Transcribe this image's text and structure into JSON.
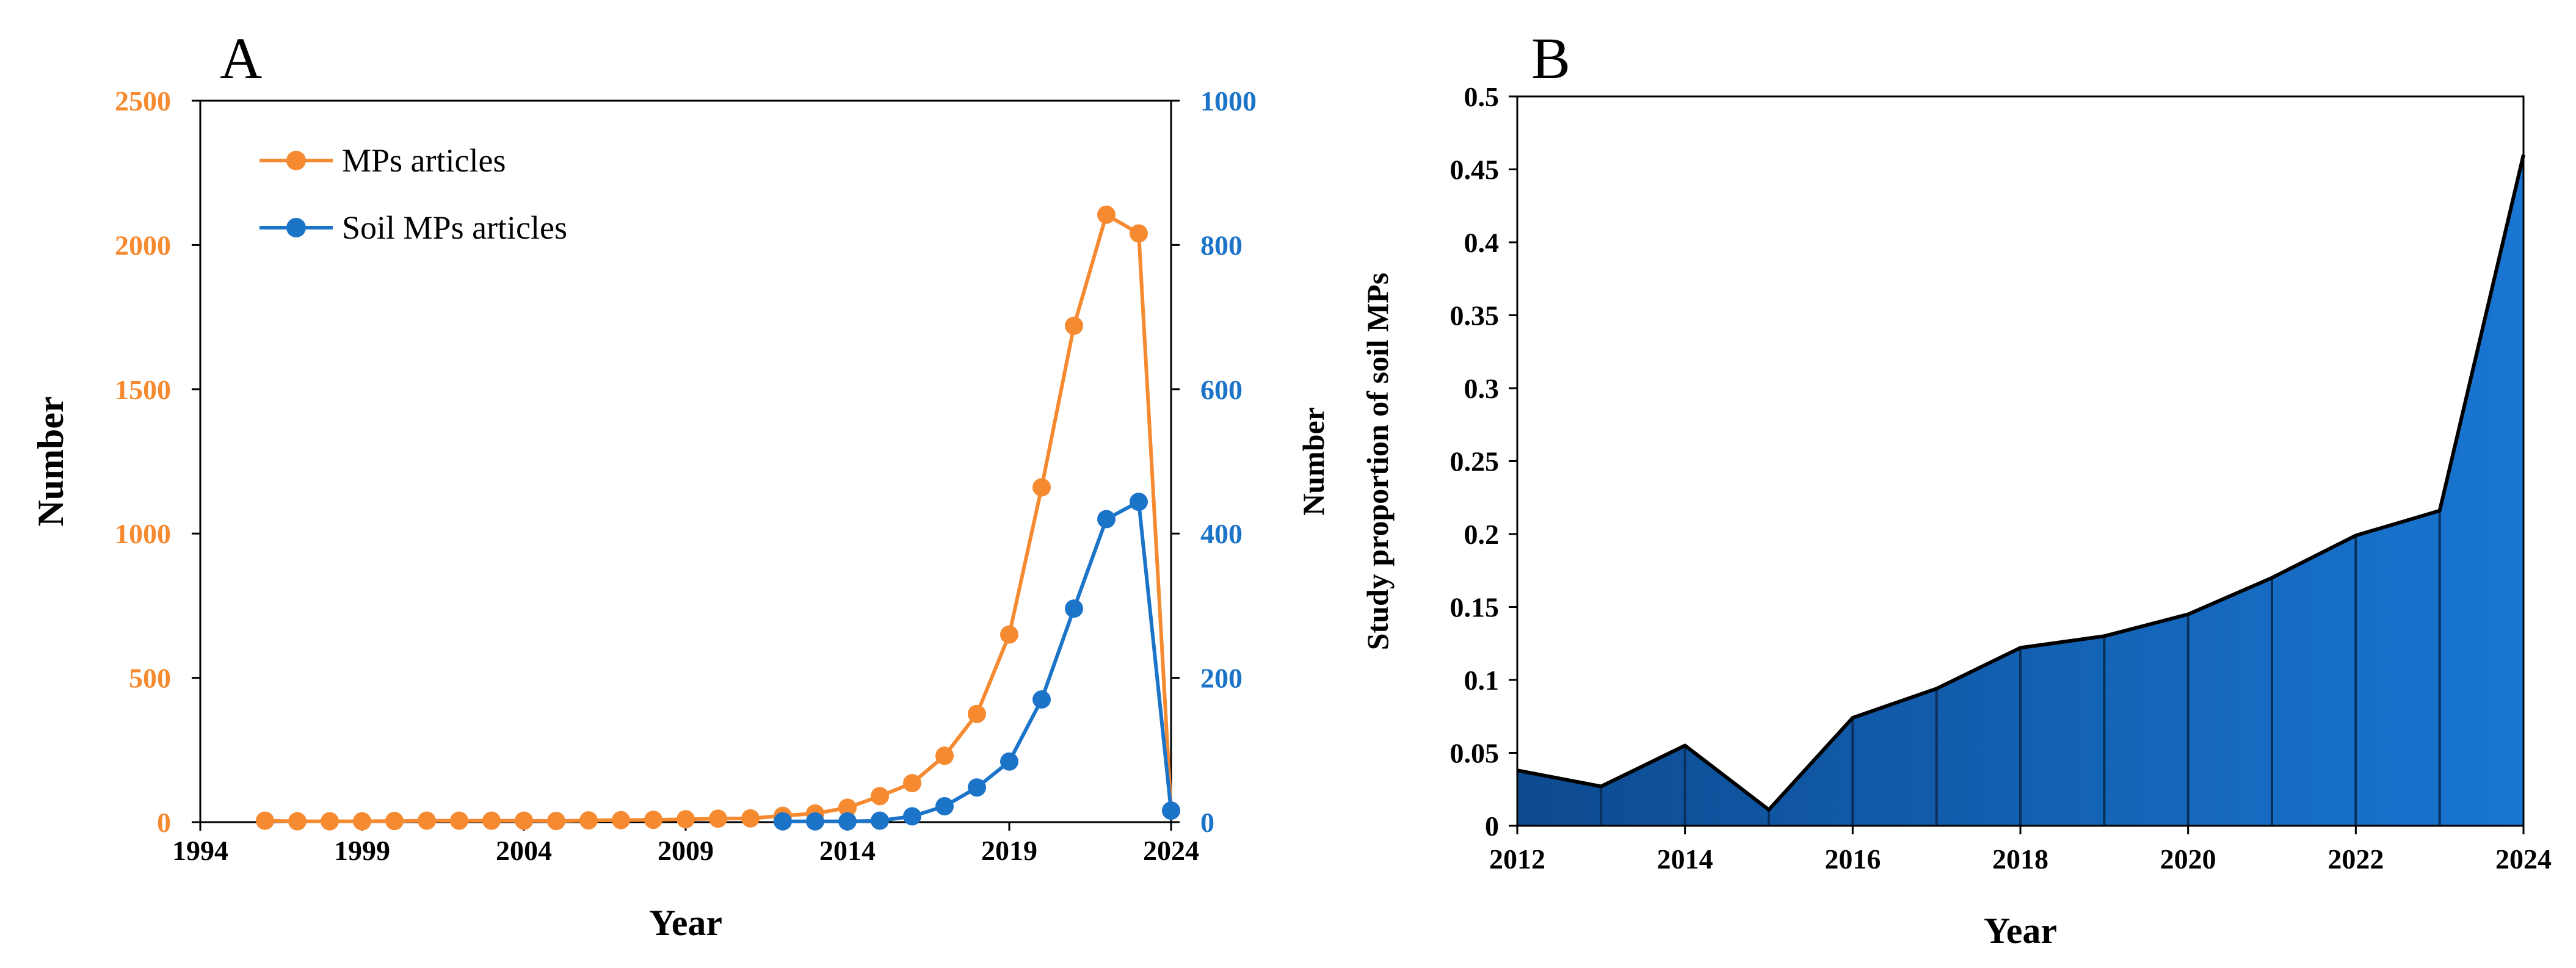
{
  "colors": {
    "orange": "#F58A30",
    "blue": "#1C74C9",
    "areaDark": "#0D4A90",
    "areaLight": "#1976D2",
    "black": "#000000"
  },
  "chart_data": [
    {
      "panel": "A",
      "type": "line",
      "xlabel": "Year",
      "ylabel_left": "Number",
      "ylabel_right": "Number",
      "xlim": [
        1994,
        2024
      ],
      "xticks": [
        "1994",
        "1999",
        "2004",
        "2009",
        "2014",
        "2019",
        "2024"
      ],
      "ylim_left": [
        0,
        2500
      ],
      "yticks_left": [
        "0",
        "500",
        "1000",
        "1500",
        "2000",
        "2500"
      ],
      "ylim_right": [
        0,
        1000
      ],
      "yticks_right": [
        "0",
        "200",
        "400",
        "600",
        "800",
        "1000"
      ],
      "legend_position": "top-left",
      "series": [
        {
          "name": "MPs articles",
          "axis": "left",
          "color": "#F58A30",
          "x": [
            1996,
            1997,
            1998,
            1999,
            2000,
            2001,
            2002,
            2003,
            2004,
            2005,
            2006,
            2007,
            2008,
            2009,
            2010,
            2011,
            2012,
            2013,
            2014,
            2015,
            2016,
            2017,
            2018,
            2019,
            2020,
            2021,
            2022,
            2023,
            2024
          ],
          "values": [
            5,
            3,
            3,
            3,
            4,
            5,
            5,
            5,
            5,
            4,
            6,
            7,
            8,
            10,
            12,
            13,
            22,
            30,
            50,
            90,
            135,
            230,
            375,
            650,
            1160,
            1720,
            2105,
            2040,
            40
          ]
        },
        {
          "name": "Soil MPs articles",
          "axis": "right",
          "color": "#1C74C9",
          "x": [
            2012,
            2013,
            2014,
            2015,
            2016,
            2017,
            2018,
            2019,
            2020,
            2021,
            2022,
            2023,
            2024
          ],
          "values": [
            1,
            1,
            1,
            2,
            8,
            22,
            48,
            84,
            170,
            296,
            420,
            444,
            16
          ]
        }
      ]
    },
    {
      "panel": "B",
      "type": "area",
      "xlabel": "Year",
      "ylabel": "Study proportion of soil MPs",
      "xlim": [
        2012,
        2024
      ],
      "xticks": [
        "2012",
        "2014",
        "2016",
        "2018",
        "2020",
        "2022",
        "2024"
      ],
      "ylim": [
        0,
        0.5
      ],
      "yticks": [
        "0",
        "0.05",
        "0.1",
        "0.15",
        "0.2",
        "0.25",
        "0.3",
        "0.35",
        "0.4",
        "0.45",
        "0.5"
      ],
      "x": [
        2012,
        2013,
        2014,
        2015,
        2016,
        2017,
        2018,
        2019,
        2020,
        2021,
        2022,
        2023,
        2024
      ],
      "values": [
        0.038,
        0.027,
        0.055,
        0.011,
        0.074,
        0.094,
        0.122,
        0.13,
        0.145,
        0.17,
        0.199,
        0.216,
        0.46
      ]
    }
  ]
}
